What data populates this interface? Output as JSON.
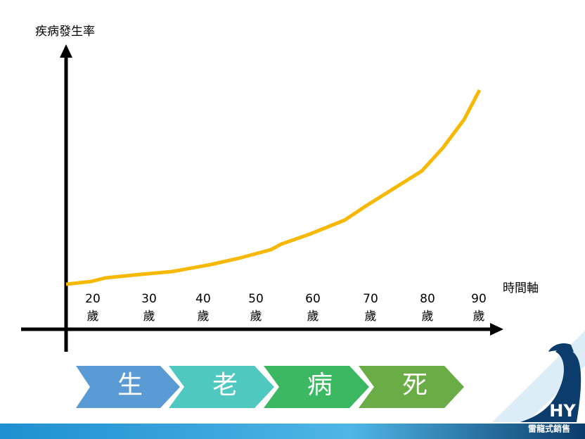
{
  "y_axis_label": "疾病發生率",
  "x_axis_label": "時間軸",
  "ages": [
    {
      "age": "20",
      "unit": "歲"
    },
    {
      "age": "30",
      "unit": "歲"
    },
    {
      "age": "40",
      "unit": "歲"
    },
    {
      "age": "50",
      "unit": "歲"
    },
    {
      "age": "60",
      "unit": "歲"
    },
    {
      "age": "70",
      "unit": "歲"
    },
    {
      "age": "80",
      "unit": "歲"
    },
    {
      "age": "90",
      "unit": "歲"
    }
  ],
  "stages": [
    "生",
    "老",
    "病",
    "死"
  ],
  "logo": {
    "mark": "HY",
    "name": "雷龍式銷售"
  }
}
